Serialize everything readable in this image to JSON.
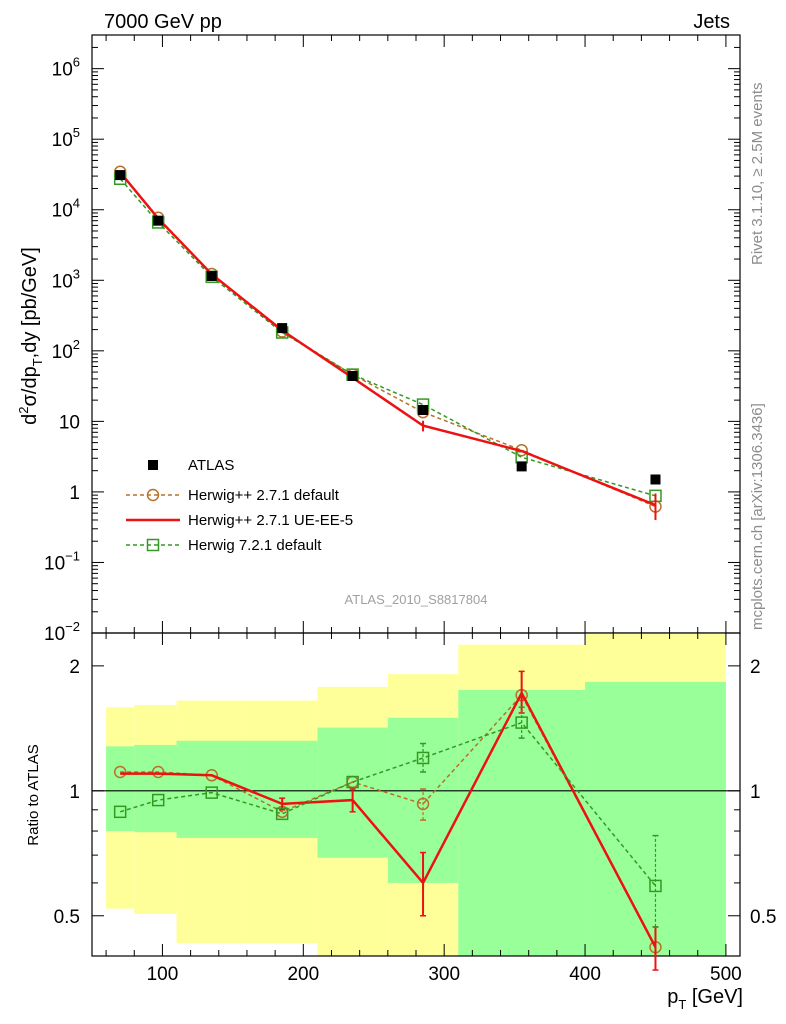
{
  "header": {
    "left_label": "7000 GeV pp",
    "right_label": "Jets",
    "side_top": "Rivet 3.1.10, ≥ 2.5M events",
    "side_bottom": "mcplots.cern.ch [arXiv:1306.3436]",
    "watermark": "ATLAS_2010_S8817804"
  },
  "chart_data": [
    {
      "type": "scatter",
      "role": "main",
      "ylabel_parts": [
        "d",
        "2",
        "σ/dp",
        "T",
        ",dy [pb/GeV]"
      ],
      "yscale": "log",
      "ylim": [
        0.01,
        3000000
      ],
      "xlim": [
        50,
        510
      ],
      "ytick_labels": [
        {
          "value": 1000000,
          "base": "10",
          "exp": "6"
        },
        {
          "value": 100000,
          "base": "10",
          "exp": "5"
        },
        {
          "value": 10000,
          "base": "10",
          "exp": "4"
        },
        {
          "value": 1000,
          "base": "10",
          "exp": "3"
        },
        {
          "value": 100,
          "base": "10",
          "exp": "2"
        },
        {
          "value": 10,
          "base": "10",
          "exp": ""
        },
        {
          "value": 1,
          "base": "1",
          "exp": ""
        },
        {
          "value": 0.1,
          "base": "10",
          "exp": "−1"
        },
        {
          "value": 0.01,
          "base": "10",
          "exp": "−2"
        }
      ],
      "x": [
        70,
        97,
        135,
        185,
        235,
        285,
        355,
        450
      ],
      "series": [
        {
          "name": "ATLAS",
          "color": "#000000",
          "style": "data",
          "values": [
            31000,
            7000,
            1150,
            210,
            44,
            14.5,
            2.3,
            1.5
          ]
        },
        {
          "name": "Herwig++ 2.7.1 default",
          "color": "#b8702a",
          "style": "dashed-circle",
          "values": [
            34500,
            7700,
            1230,
            188,
            46,
            13.5,
            3.9,
            0.62
          ]
        },
        {
          "name": "Herwig++ 2.7.1 UE-EE-5",
          "color": "#ee1111",
          "style": "solid",
          "values": [
            34000,
            7500,
            1220,
            195,
            41.5,
            8.7,
            3.8,
            0.65
          ],
          "err_low": [
            0,
            0,
            0,
            0,
            0,
            7.2,
            0,
            0.4
          ],
          "err_high": [
            0,
            0,
            0,
            0,
            0,
            10.2,
            0,
            0.95
          ]
        },
        {
          "name": "Herwig 7.2.1 default",
          "color": "#339922",
          "style": "dashed-square",
          "values": [
            27500,
            6600,
            1120,
            182,
            46,
            17.3,
            3.1,
            0.88
          ]
        }
      ]
    },
    {
      "type": "scatter",
      "role": "ratio",
      "ylabel": "Ratio to ATLAS",
      "xlabel": "p_T [GeV]",
      "xlabel_parts": [
        "p",
        "T",
        " [GeV]"
      ],
      "ylim": [
        0.4,
        2.4
      ],
      "xlim": [
        50,
        510
      ],
      "xticks": [
        100,
        200,
        300,
        400,
        500
      ],
      "yticks": [
        0.5,
        1,
        2
      ],
      "bins": [
        {
          "lo": 60,
          "hi": 80,
          "green": [
            0.8,
            1.28
          ],
          "yellow": [
            0.52,
            1.59
          ]
        },
        {
          "lo": 80,
          "hi": 110,
          "green": [
            0.795,
            1.29
          ],
          "yellow": [
            0.505,
            1.61
          ]
        },
        {
          "lo": 110,
          "hi": 160,
          "green": [
            0.77,
            1.32
          ],
          "yellow": [
            0.43,
            1.65
          ]
        },
        {
          "lo": 160,
          "hi": 210,
          "green": [
            0.77,
            1.32
          ],
          "yellow": [
            0.43,
            1.65
          ]
        },
        {
          "lo": 210,
          "hi": 260,
          "green": [
            0.69,
            1.42
          ],
          "yellow": [
            0.4,
            1.78
          ]
        },
        {
          "lo": 260,
          "hi": 310,
          "green": [
            0.6,
            1.5
          ],
          "yellow": [
            0.4,
            1.91
          ]
        },
        {
          "lo": 310,
          "hi": 400,
          "green": [
            0.4,
            1.75
          ],
          "yellow": [
            0.4,
            2.25
          ]
        },
        {
          "lo": 400,
          "hi": 500,
          "green": [
            0.4,
            1.83
          ],
          "yellow": [
            0.4,
            2.4
          ]
        }
      ],
      "series": [
        {
          "name": "Herwig++ 2.7.1 default",
          "color": "#b8702a",
          "values": [
            1.11,
            1.11,
            1.09,
            0.89,
            1.05,
            0.93,
            1.7,
            0.42
          ],
          "err_low": [
            0,
            0,
            0,
            0,
            0,
            0.08,
            0,
            0
          ],
          "err_high": [
            0,
            0,
            0,
            0,
            0,
            0.08,
            0,
            0
          ]
        },
        {
          "name": "Herwig++ 2.7.1 UE-EE-5",
          "color": "#ee1111",
          "values": [
            1.1,
            1.1,
            1.09,
            0.93,
            0.95,
            0.6,
            1.72,
            0.42
          ],
          "err_low": [
            0,
            0,
            0,
            0.03,
            0.06,
            0.1,
            0.18,
            0.05
          ],
          "err_high": [
            0,
            0,
            0,
            0.03,
            0.06,
            0.11,
            0.22,
            0.05
          ]
        },
        {
          "name": "Herwig 7.2.1 default",
          "color": "#339922",
          "values": [
            0.89,
            0.95,
            0.99,
            0.88,
            1.05,
            1.2,
            1.46,
            0.59
          ],
          "err_low": [
            0,
            0,
            0,
            0,
            0,
            0.09,
            0.12,
            0.12
          ],
          "err_high": [
            0,
            0,
            0,
            0,
            0,
            0.1,
            0.13,
            0.19
          ]
        }
      ]
    }
  ]
}
